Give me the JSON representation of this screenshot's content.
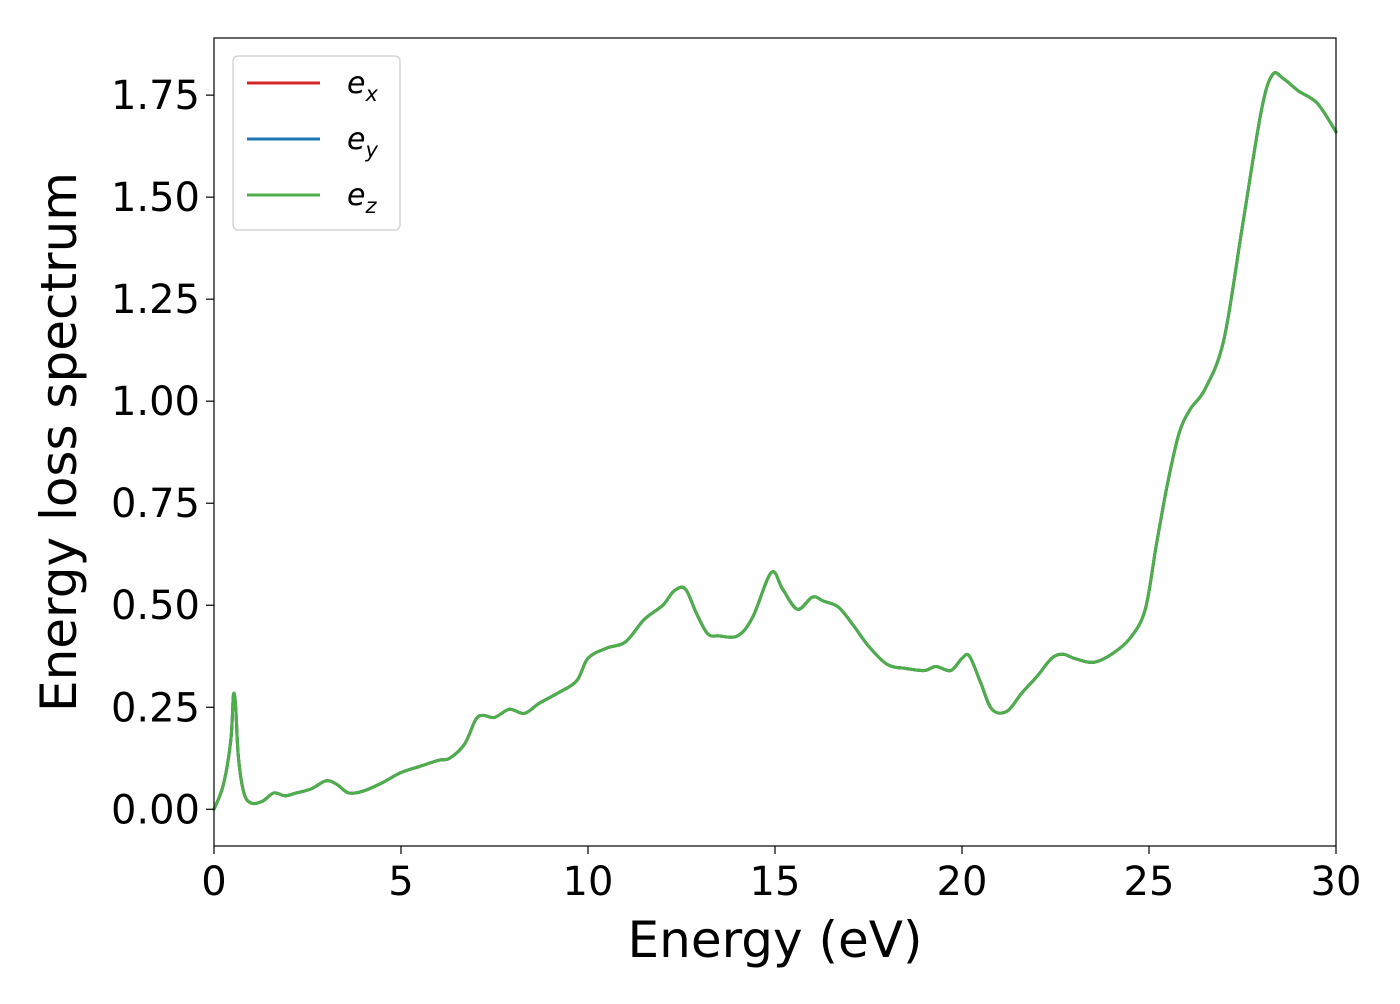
{
  "chart_data": {
    "type": "line",
    "xlabel": "Energy (eV)",
    "ylabel": "Energy loss spectrum",
    "xlim": [
      0,
      30
    ],
    "ylim": [
      -0.09,
      1.89
    ],
    "x_ticks": [
      0,
      5,
      10,
      15,
      20,
      25,
      30
    ],
    "x_tick_labels": [
      "0",
      "5",
      "10",
      "15",
      "20",
      "25",
      "30"
    ],
    "y_ticks": [
      0.0,
      0.25,
      0.5,
      0.75,
      1.0,
      1.25,
      1.5,
      1.75
    ],
    "y_tick_labels": [
      "0.00",
      "0.25",
      "0.50",
      "0.75",
      "1.00",
      "1.25",
      "1.50",
      "1.75"
    ],
    "grid": false,
    "legend_position": "top-left",
    "x": [
      0,
      0.25,
      0.45,
      0.52,
      0.58,
      0.65,
      0.8,
      1.0,
      1.3,
      1.6,
      1.9,
      2.2,
      2.6,
      3.0,
      3.3,
      3.6,
      4.0,
      4.5,
      5.0,
      5.5,
      6.0,
      6.3,
      6.7,
      7.0,
      7.2,
      7.5,
      7.9,
      8.3,
      8.7,
      9.2,
      9.7,
      10.0,
      10.5,
      11.0,
      11.5,
      12.0,
      12.3,
      12.6,
      12.9,
      13.2,
      13.5,
      14.0,
      14.4,
      14.9,
      15.2,
      15.6,
      16.0,
      16.3,
      16.7,
      17.1,
      17.5,
      18.0,
      18.5,
      19.0,
      19.3,
      19.7,
      20.0,
      20.2,
      20.5,
      20.8,
      21.2,
      21.6,
      22.0,
      22.4,
      22.7,
      23.0,
      23.5,
      24.0,
      24.5,
      24.9,
      25.2,
      25.5,
      25.8,
      26.1,
      26.5,
      27.0,
      27.5,
      28.0,
      28.3,
      28.6,
      29.0,
      29.5,
      30.0
    ],
    "series": [
      {
        "name": "e_x",
        "color": "#d62728",
        "values": [
          0.0,
          0.06,
          0.17,
          0.28,
          0.25,
          0.13,
          0.04,
          0.015,
          0.02,
          0.04,
          0.033,
          0.04,
          0.05,
          0.07,
          0.06,
          0.04,
          0.045,
          0.065,
          0.09,
          0.105,
          0.12,
          0.125,
          0.16,
          0.22,
          0.23,
          0.225,
          0.245,
          0.235,
          0.26,
          0.285,
          0.315,
          0.37,
          0.395,
          0.41,
          0.465,
          0.5,
          0.535,
          0.54,
          0.48,
          0.43,
          0.425,
          0.425,
          0.47,
          0.58,
          0.54,
          0.49,
          0.52,
          0.51,
          0.495,
          0.45,
          0.4,
          0.355,
          0.345,
          0.34,
          0.35,
          0.34,
          0.37,
          0.375,
          0.31,
          0.245,
          0.24,
          0.285,
          0.325,
          0.37,
          0.38,
          0.37,
          0.36,
          0.38,
          0.42,
          0.49,
          0.65,
          0.8,
          0.92,
          0.98,
          1.03,
          1.15,
          1.43,
          1.71,
          1.8,
          1.79,
          1.76,
          1.73,
          1.66
        ]
      },
      {
        "name": "e_y",
        "color": "#1f77b4",
        "values": [
          0.0,
          0.06,
          0.17,
          0.28,
          0.25,
          0.13,
          0.04,
          0.015,
          0.02,
          0.04,
          0.033,
          0.04,
          0.05,
          0.07,
          0.06,
          0.04,
          0.045,
          0.065,
          0.09,
          0.105,
          0.12,
          0.125,
          0.16,
          0.22,
          0.23,
          0.225,
          0.245,
          0.235,
          0.26,
          0.285,
          0.315,
          0.37,
          0.395,
          0.41,
          0.465,
          0.5,
          0.535,
          0.54,
          0.48,
          0.43,
          0.425,
          0.425,
          0.47,
          0.58,
          0.54,
          0.49,
          0.52,
          0.51,
          0.495,
          0.45,
          0.4,
          0.355,
          0.345,
          0.34,
          0.35,
          0.34,
          0.37,
          0.375,
          0.31,
          0.245,
          0.24,
          0.285,
          0.325,
          0.37,
          0.38,
          0.37,
          0.36,
          0.38,
          0.42,
          0.49,
          0.65,
          0.8,
          0.92,
          0.98,
          1.03,
          1.15,
          1.43,
          1.71,
          1.8,
          1.79,
          1.76,
          1.73,
          1.66
        ]
      },
      {
        "name": "e_z",
        "color": "#4daf4a",
        "values": [
          0.0,
          0.06,
          0.17,
          0.28,
          0.25,
          0.13,
          0.04,
          0.015,
          0.02,
          0.04,
          0.033,
          0.04,
          0.05,
          0.07,
          0.06,
          0.04,
          0.045,
          0.065,
          0.09,
          0.105,
          0.12,
          0.125,
          0.16,
          0.22,
          0.23,
          0.225,
          0.245,
          0.235,
          0.26,
          0.285,
          0.315,
          0.37,
          0.395,
          0.41,
          0.465,
          0.5,
          0.535,
          0.54,
          0.48,
          0.43,
          0.425,
          0.425,
          0.47,
          0.58,
          0.54,
          0.49,
          0.52,
          0.51,
          0.495,
          0.45,
          0.4,
          0.355,
          0.345,
          0.34,
          0.35,
          0.34,
          0.37,
          0.375,
          0.31,
          0.245,
          0.24,
          0.285,
          0.325,
          0.37,
          0.38,
          0.37,
          0.36,
          0.38,
          0.42,
          0.49,
          0.65,
          0.8,
          0.92,
          0.98,
          1.03,
          1.15,
          1.43,
          1.71,
          1.8,
          1.79,
          1.76,
          1.73,
          1.66
        ]
      }
    ],
    "legend": [
      {
        "base": "e",
        "sub": "x",
        "color": "#d62728"
      },
      {
        "base": "e",
        "sub": "y",
        "color": "#1f77b4"
      },
      {
        "base": "e",
        "sub": "z",
        "color": "#4daf4a"
      }
    ]
  }
}
